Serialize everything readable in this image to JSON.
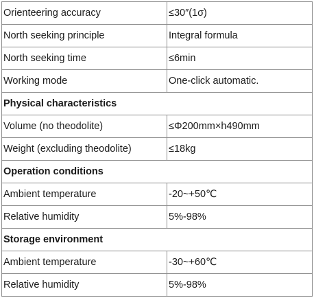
{
  "spec_table": {
    "rows": [
      {
        "type": "data",
        "label": "Orienteering accuracy",
        "value": "≤30″(1σ)"
      },
      {
        "type": "data",
        "label": "North seeking principle",
        "value": "Integral formula"
      },
      {
        "type": "data",
        "label": "North seeking time",
        "value": "≤6min"
      },
      {
        "type": "data",
        "label": "Working mode",
        "value": "One-click automatic."
      },
      {
        "type": "section",
        "label": "Physical characteristics"
      },
      {
        "type": "data",
        "label": "Volume (no theodolite)",
        "value": "≤Φ200mm×h490mm"
      },
      {
        "type": "data",
        "label": "Weight (excluding theodolite)",
        "value": "≤18kg"
      },
      {
        "type": "section",
        "label": "Operation conditions"
      },
      {
        "type": "data",
        "label": "Ambient temperature",
        "value": "-20~+50℃"
      },
      {
        "type": "data",
        "label": "Relative humidity",
        "value": "5%-98%"
      },
      {
        "type": "section",
        "label": "Storage environment"
      },
      {
        "type": "data",
        "label": "Ambient temperature",
        "value": "-30~+60℃"
      },
      {
        "type": "data",
        "label": "Relative humidity",
        "value": "5%-98%"
      }
    ]
  }
}
